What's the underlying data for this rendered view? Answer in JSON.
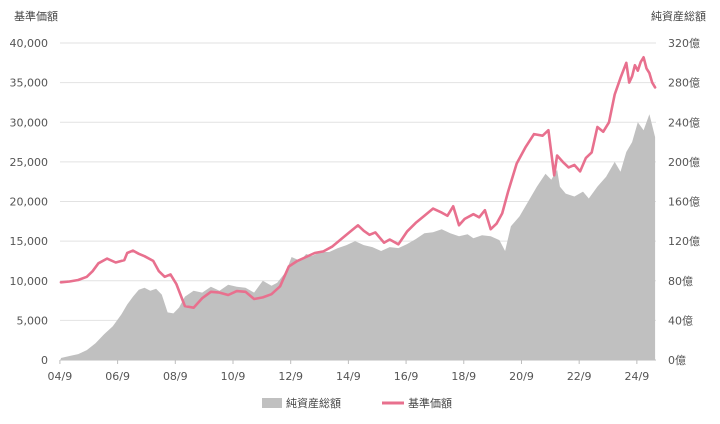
{
  "chart_data": {
    "type": "area",
    "title": "",
    "axes": {
      "left_title": "基準価額",
      "right_title": "純資産総額",
      "left_ylim": [
        0,
        40000
      ],
      "right_ylim": [
        0,
        320
      ],
      "left_ticks": [
        "0",
        "5,000",
        "10,000",
        "15,000",
        "20,000",
        "25,000",
        "30,000",
        "35,000",
        "40,000"
      ],
      "right_ticks": [
        "0億",
        "40億",
        "80億",
        "120億",
        "160億",
        "200億",
        "240億",
        "280億",
        "320億"
      ],
      "x_ticks": [
        "04/9",
        "06/9",
        "08/9",
        "10/9",
        "12/9",
        "14/9",
        "16/9",
        "18/9",
        "20/9",
        "22/9",
        "24/9"
      ],
      "x_start": 2004.67,
      "x_end": 2025.33,
      "grid": "horizontal"
    },
    "colors": {
      "nav_line": "#e8708e",
      "assets_area": "#c0c0c0",
      "grid": "#e2e2e2"
    },
    "legend": {
      "placement": "bottom-center",
      "items": [
        {
          "label": "純資産総額",
          "kind": "area"
        },
        {
          "label": "基準価額",
          "kind": "line"
        }
      ]
    },
    "series": [
      {
        "name": "純資産総額",
        "axis": "right",
        "x": [
          2004.7,
          2005.0,
          2005.3,
          2005.6,
          2005.9,
          2006.2,
          2006.5,
          2006.8,
          2007.0,
          2007.2,
          2007.4,
          2007.6,
          2007.8,
          2008.0,
          2008.2,
          2008.4,
          2008.6,
          2008.8,
          2009.0,
          2009.3,
          2009.6,
          2009.9,
          2010.2,
          2010.5,
          2010.8,
          2011.1,
          2011.4,
          2011.7,
          2012.0,
          2012.2,
          2012.5,
          2012.7,
          2013.0,
          2013.2,
          2013.4,
          2013.7,
          2014.0,
          2014.3,
          2014.6,
          2014.9,
          2015.2,
          2015.5,
          2015.8,
          2016.1,
          2016.4,
          2016.7,
          2017.0,
          2017.3,
          2017.6,
          2017.9,
          2018.2,
          2018.5,
          2018.8,
          2019.0,
          2019.3,
          2019.6,
          2019.9,
          2020.1,
          2020.3,
          2020.6,
          2020.9,
          2021.2,
          2021.5,
          2021.7,
          2021.9,
          2022.0,
          2022.2,
          2022.5,
          2022.8,
          2023.0,
          2023.3,
          2023.6,
          2023.9,
          2024.1,
          2024.3,
          2024.5,
          2024.7,
          2024.9,
          2025.1,
          2025.3
        ],
        "values": [
          2,
          4,
          6,
          10,
          17,
          26,
          34,
          46,
          56,
          64,
          71,
          73,
          70,
          72,
          66,
          48,
          47,
          53,
          64,
          70,
          68,
          74,
          70,
          76,
          74,
          73,
          68,
          80,
          75,
          78,
          89,
          104,
          100,
          107,
          105,
          109,
          109,
          113,
          116,
          120,
          116,
          114,
          110,
          114,
          113,
          117,
          122,
          128,
          129,
          132,
          128,
          125,
          127,
          123,
          126,
          125,
          121,
          110,
          135,
          145,
          160,
          175,
          188,
          182,
          192,
          175,
          168,
          165,
          170,
          163,
          175,
          185,
          200,
          190,
          210,
          220,
          240,
          232,
          248,
          225
        ]
      },
      {
        "name": "基準価額",
        "axis": "left",
        "x": [
          2004.7,
          2005.0,
          2005.3,
          2005.6,
          2005.8,
          2006.0,
          2006.3,
          2006.6,
          2006.9,
          2007.0,
          2007.2,
          2007.4,
          2007.6,
          2007.9,
          2008.1,
          2008.3,
          2008.5,
          2008.7,
          2009.0,
          2009.3,
          2009.6,
          2009.9,
          2010.2,
          2010.5,
          2010.8,
          2011.1,
          2011.4,
          2011.7,
          2012.0,
          2012.3,
          2012.6,
          2012.9,
          2013.2,
          2013.5,
          2013.8,
          2014.1,
          2014.4,
          2014.7,
          2015.0,
          2015.2,
          2015.4,
          2015.6,
          2015.9,
          2016.1,
          2016.4,
          2016.7,
          2017.0,
          2017.3,
          2017.6,
          2017.9,
          2018.1,
          2018.3,
          2018.5,
          2018.7,
          2019.0,
          2019.2,
          2019.4,
          2019.6,
          2019.8,
          2020.0,
          2020.2,
          2020.5,
          2020.8,
          2021.1,
          2021.4,
          2021.6,
          2021.8,
          2021.9,
          2022.1,
          2022.3,
          2022.5,
          2022.7,
          2022.9,
          2023.1,
          2023.3,
          2023.5,
          2023.7,
          2023.9,
          2024.1,
          2024.3,
          2024.4,
          2024.5,
          2024.6,
          2024.7,
          2024.8,
          2024.9,
          2025.0,
          2025.1,
          2025.2,
          2025.3
        ],
        "values": [
          9800,
          9900,
          10100,
          10500,
          11200,
          12200,
          12800,
          12300,
          12600,
          13500,
          13800,
          13400,
          13100,
          12500,
          11200,
          10500,
          10800,
          9600,
          6800,
          6600,
          7800,
          8600,
          8500,
          8200,
          8700,
          8600,
          7700,
          7900,
          8300,
          9300,
          11800,
          12500,
          13000,
          13500,
          13700,
          14300,
          15200,
          16100,
          17000,
          16300,
          15800,
          16100,
          14800,
          15200,
          14600,
          16200,
          17300,
          18200,
          19100,
          18600,
          18200,
          19400,
          17000,
          17800,
          18400,
          18000,
          18900,
          16500,
          17200,
          18500,
          21200,
          24800,
          26800,
          28500,
          28300,
          29000,
          23300,
          25800,
          25000,
          24300,
          24600,
          23800,
          25500,
          26200,
          29400,
          28800,
          30000,
          33500,
          35600,
          37500,
          35000,
          35800,
          37200,
          36500,
          37600,
          38200,
          36800,
          36200,
          35000,
          34400
        ]
      }
    ]
  }
}
